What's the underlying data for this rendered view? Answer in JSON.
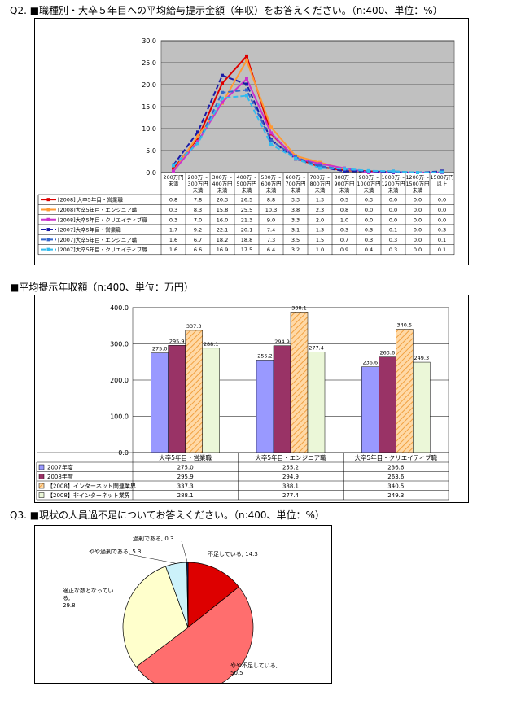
{
  "q2": {
    "title": "Q2. ■職種別・大卒５年目への平均給与提示金額（年収）をお答えください。（n:400、単位：%）",
    "chart_data": {
      "type": "line",
      "x": [
        "200万円\n未満",
        "200万～\n300万円\n未満",
        "300万～\n400万円\n未満",
        "400万～\n500万円\n未満",
        "500万～\n600万円\n未満",
        "600万～\n700万円\n未満",
        "700万～\n800万円\n未満",
        "800万～\n900万円\n未満",
        "900万～\n1000万円\n未満",
        "1000万～\n1200万円\n未満",
        "1200万～\n1500万円\n未満",
        "1500万円\n以上"
      ],
      "ylim": [
        0,
        30
      ],
      "yticks": [
        "0.0",
        "5.0",
        "10.0",
        "15.0",
        "20.0",
        "25.0",
        "30.0"
      ],
      "grid": true,
      "series": [
        {
          "name": "[2008] 大卒5年目・営業職",
          "color": "#dd0000",
          "dash": "",
          "values": [
            0.8,
            7.8,
            20.3,
            26.5,
            8.8,
            3.3,
            1.3,
            0.5,
            0.3,
            0.0,
            0.0,
            0.0
          ],
          "labels": [
            "0.8",
            "7.8",
            "20.3",
            "26.5",
            "8.8",
            "3.3",
            "1.3",
            "0.5",
            "0.3",
            "0.0",
            "0.0",
            "0.0"
          ]
        },
        {
          "name": "[2008]大卒5年目・エンジニア職",
          "color": "#ff9933",
          "dash": "",
          "values": [
            0.3,
            8.3,
            15.8,
            25.5,
            10.3,
            3.8,
            2.3,
            0.8,
            0.0,
            0.0,
            0.0,
            0.0
          ],
          "labels": [
            "0.3",
            "8.3",
            "15.8",
            "25.5",
            "10.3",
            "3.8",
            "2.3",
            "0.8",
            "0.0",
            "0.0",
            "0.0",
            "0.0"
          ]
        },
        {
          "name": "[2008]大卒5年目・クリエイティブ職",
          "color": "#cc33cc",
          "dash": "",
          "values": [
            0.3,
            7.0,
            16.0,
            21.3,
            9.0,
            3.3,
            2.0,
            1.0,
            0.0,
            0.0,
            0.0,
            0.0
          ],
          "labels": [
            "0.3",
            "7.0",
            "16.0",
            "21.3",
            "9.0",
            "3.3",
            "2.0",
            "1.0",
            "0.0",
            "0.0",
            "0.0",
            "0.0"
          ]
        },
        {
          "name": "[2007]大卒5年目・営業職",
          "color": "#1a1aa6",
          "dash": "6,3",
          "values": [
            1.7,
            9.2,
            22.1,
            20.1,
            7.4,
            3.1,
            1.3,
            0.3,
            0.3,
            0.1,
            0.0,
            0.3
          ],
          "labels": [
            "1.7",
            "9.2",
            "22.1",
            "20.1",
            "7.4",
            "3.1",
            "1.3",
            "0.3",
            "0.3",
            "0.1",
            "0.0",
            "0.3"
          ]
        },
        {
          "name": "[2007]大卒5年目・エンジニア職",
          "color": "#3366cc",
          "dash": "6,3",
          "values": [
            1.6,
            6.7,
            18.2,
            18.8,
            7.3,
            3.5,
            1.5,
            0.7,
            0.3,
            0.3,
            0.0,
            0.1
          ],
          "labels": [
            "1.6",
            "6.7",
            "18.2",
            "18.8",
            "7.3",
            "3.5",
            "1.5",
            "0.7",
            "0.3",
            "0.3",
            "0.0",
            "0.1"
          ]
        },
        {
          "name": "[2007]大卒5年目・クリエイティブ職",
          "color": "#33bbee",
          "dash": "6,3",
          "values": [
            1.6,
            6.6,
            16.9,
            17.5,
            6.4,
            3.2,
            1.0,
            0.9,
            0.4,
            0.3,
            0.0,
            0.1
          ],
          "labels": [
            "1.6",
            "6.6",
            "16.9",
            "17.5",
            "6.4",
            "3.2",
            "1.0",
            "0.9",
            "0.4",
            "0.3",
            "0.0",
            "0.1"
          ]
        }
      ]
    }
  },
  "avg": {
    "title": "■平均提示年収額（n:400、単位：万円）",
    "chart_data": {
      "type": "bar",
      "categories": [
        "大卒5年目・営業職",
        "大卒5年目・エンジニア職",
        "大卒5年目・クリエイティブ職"
      ],
      "ylim": [
        0,
        400
      ],
      "yticks": [
        "0.0",
        "100.0",
        "200.0",
        "300.0",
        "400.0"
      ],
      "grid": true,
      "series": [
        {
          "name": "2007年度",
          "color": "#9999ff",
          "hatch": false,
          "values": [
            275.0,
            255.2,
            236.6
          ],
          "labels": [
            "275.0",
            "255.2",
            "236.6"
          ]
        },
        {
          "name": "2008年度",
          "color": "#993366",
          "hatch": false,
          "values": [
            295.9,
            294.9,
            263.6
          ],
          "labels": [
            "295.9",
            "294.9",
            "263.6"
          ]
        },
        {
          "name": "【2008】インターネット関連業界",
          "color": "#ffd9a6",
          "hatch": true,
          "values": [
            337.3,
            388.1,
            340.5
          ],
          "labels": [
            "337.3",
            "388.1",
            "340.5"
          ]
        },
        {
          "name": "【2008】非インターネット業界",
          "color": "#ebf7d8",
          "hatch": false,
          "values": [
            288.1,
            277.4,
            249.3
          ],
          "labels": [
            "288.1",
            "277.4",
            "249.3"
          ]
        }
      ]
    }
  },
  "q3": {
    "title": "Q3. ■現状の人員過不足についてお答えください。（n:400、単位：%）",
    "chart_data": {
      "type": "pie",
      "slices": [
        {
          "label": "不足している, 14.3",
          "value": 14.3,
          "color": "#dd0000"
        },
        {
          "label": "やや不足している,\n50.5",
          "value": 50.5,
          "color": "#ff6e6e"
        },
        {
          "label": "適正な数となってい\nる,\n29.8",
          "value": 29.8,
          "color": "#ffffcc"
        },
        {
          "label": "やや過剰である, 5.3",
          "value": 5.3,
          "color": "#ccf2fa"
        },
        {
          "label": "過剰である, 0.3",
          "value": 0.3,
          "color": "#0b2b7a"
        }
      ]
    }
  }
}
